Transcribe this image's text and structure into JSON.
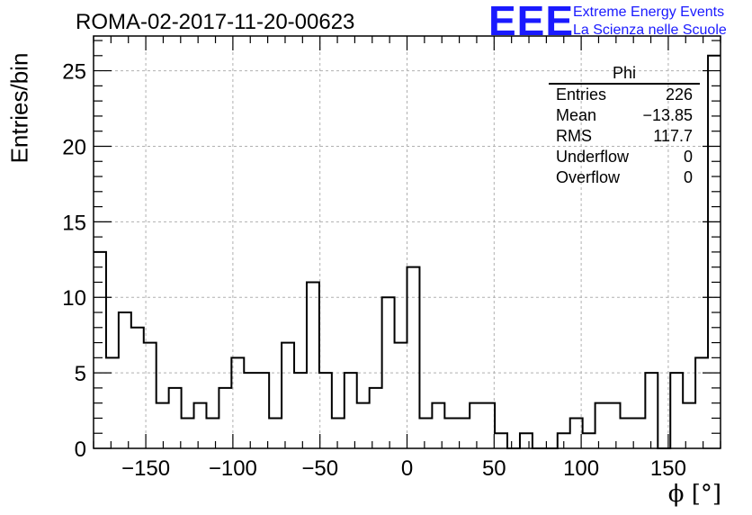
{
  "header": {
    "run_title": "ROMA-02-2017-11-20-00623",
    "logo_mark": "EEE",
    "logo_line1": "Extreme Energy Events",
    "logo_line2": "La Scienza nelle Scuole"
  },
  "stats_box": {
    "name": "Phi",
    "rows": [
      {
        "label": "Entries",
        "value": "226"
      },
      {
        "label": "Mean",
        "value": "−13.85"
      },
      {
        "label": "RMS",
        "value": "117.7"
      },
      {
        "label": "Underflow",
        "value": "0"
      },
      {
        "label": "Overflow",
        "value": "0"
      }
    ]
  },
  "chart_data": {
    "type": "histogram",
    "title": "ROMA-02-2017-11-20-00623",
    "xlabel": "ϕ [°]",
    "ylabel": "Entries/bin",
    "xlim": [
      -180,
      180
    ],
    "ylim": [
      0,
      27.3
    ],
    "bin_width": 7.2,
    "x_ticks": [
      -150,
      -100,
      -50,
      0,
      50,
      100,
      150
    ],
    "x_tick_labels": [
      "−150",
      "−100",
      "−50",
      "0",
      "50",
      "100",
      "150"
    ],
    "y_ticks": [
      0,
      5,
      10,
      15,
      20,
      25
    ],
    "grid": true,
    "line_color": "#000000",
    "bin_edges_start": -180,
    "values": [
      13,
      6,
      9,
      8,
      7,
      3,
      4,
      2,
      3,
      2,
      4,
      6,
      5,
      5,
      2,
      7,
      5,
      11,
      5,
      2,
      5,
      3,
      4,
      10,
      7,
      12,
      2,
      3,
      2,
      2,
      3,
      3,
      1,
      0,
      1,
      0,
      0,
      1,
      2,
      1,
      3,
      3,
      2,
      2,
      5,
      0,
      5,
      3,
      6,
      26
    ]
  }
}
